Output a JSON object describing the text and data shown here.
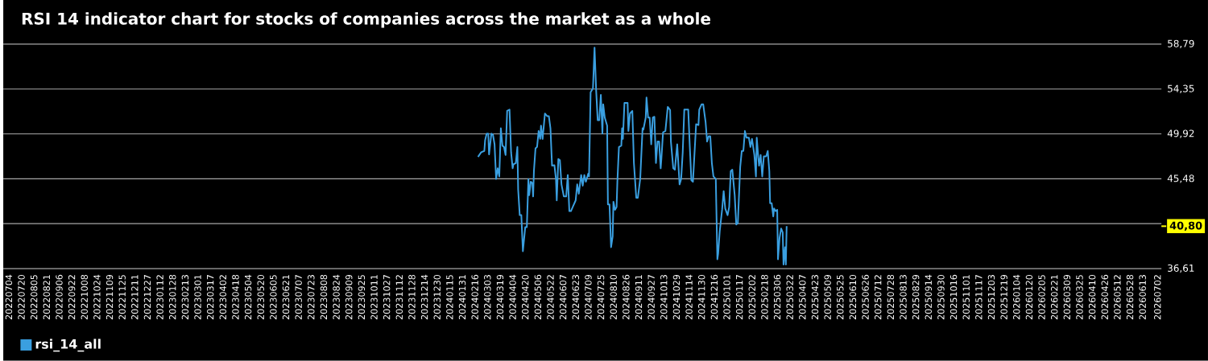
{
  "chart_data": {
    "type": "line",
    "title": "RSI 14 indicator chart for stocks of companies across the market as a whole",
    "x": [
      "2024-02-20",
      "2024-02-24",
      "2024-02-28",
      "2024-02-29",
      "2024-03-02",
      "2024-03-04",
      "2024-03-05",
      "2024-03-08",
      "2024-03-10",
      "2024-03-12",
      "2024-03-14",
      "2024-03-16",
      "2024-03-18",
      "2024-03-20",
      "2024-03-22",
      "2024-03-24",
      "2024-03-26",
      "2024-03-28",
      "2024-03-31",
      "2024-04-02",
      "2024-04-04",
      "2024-04-05",
      "2024-04-08",
      "2024-04-10",
      "2024-04-11",
      "2024-04-13",
      "2024-04-15",
      "2024-04-17",
      "2024-04-20",
      "2024-04-22",
      "2024-04-24",
      "2024-04-25",
      "2024-04-27",
      "2024-04-29",
      "2024-04-30",
      "2024-05-01",
      "2024-05-03",
      "2024-05-05",
      "2024-05-07",
      "2024-05-09",
      "2024-05-10",
      "2024-05-12",
      "2024-05-15",
      "2024-05-18",
      "2024-05-20",
      "2024-05-22",
      "2024-05-24",
      "2024-05-27",
      "2024-05-29",
      "2024-05-30",
      "2024-06-01",
      "2024-06-03",
      "2024-06-05",
      "2024-06-08",
      "2024-06-11",
      "2024-06-13",
      "2024-06-15",
      "2024-06-17",
      "2024-06-20",
      "2024-06-23",
      "2024-06-25",
      "2024-06-27",
      "2024-06-30",
      "2024-07-02",
      "2024-07-04",
      "2024-07-06",
      "2024-07-09",
      "2024-07-10",
      "2024-07-12",
      "2024-07-15",
      "2024-07-17",
      "2024-07-19",
      "2024-07-21",
      "2024-07-23",
      "2024-07-25",
      "2024-07-27",
      "2024-07-28",
      "2024-07-30",
      "2024-08-02",
      "2024-08-03",
      "2024-08-05",
      "2024-08-07",
      "2024-08-09",
      "2024-08-10",
      "2024-08-12",
      "2024-08-14",
      "2024-08-15",
      "2024-08-17",
      "2024-08-20",
      "2024-08-21",
      "2024-08-22",
      "2024-08-24",
      "2024-08-28",
      "2024-08-29",
      "2024-08-31",
      "2024-09-03",
      "2024-09-05",
      "2024-09-08",
      "2024-09-10",
      "2024-09-13",
      "2024-09-16",
      "2024-09-17",
      "2024-09-20",
      "2024-09-21",
      "2024-09-23",
      "2024-09-25",
      "2024-09-27",
      "2024-09-29",
      "2024-10-01",
      "2024-10-03",
      "2024-10-05",
      "2024-10-07",
      "2024-10-09",
      "2024-10-10",
      "2024-10-12",
      "2024-10-15",
      "2024-10-18",
      "2024-10-21",
      "2024-10-22",
      "2024-10-25",
      "2024-10-27",
      "2024-10-30",
      "2024-11-02",
      "2024-11-04",
      "2024-11-06",
      "2024-11-08",
      "2024-11-10",
      "2024-11-13",
      "2024-11-15",
      "2024-11-17",
      "2024-11-19",
      "2024-11-23",
      "2024-11-26",
      "2024-11-27",
      "2024-11-30",
      "2024-12-02",
      "2024-12-05",
      "2024-12-07",
      "2024-12-09",
      "2024-12-11",
      "2024-12-13",
      "2024-12-15",
      "2024-12-18",
      "2024-12-20",
      "2024-12-21",
      "2024-12-23",
      "2024-12-26",
      "2024-12-28",
      "2024-12-30",
      "2025-01-02",
      "2025-01-04",
      "2025-01-06",
      "2025-01-08",
      "2025-01-11",
      "2025-01-13",
      "2025-01-15",
      "2025-01-18",
      "2025-01-20",
      "2025-01-22",
      "2025-01-24",
      "2025-01-26",
      "2025-01-29",
      "2025-01-31",
      "2025-02-02",
      "2025-02-05",
      "2025-02-07",
      "2025-02-08",
      "2025-02-10",
      "2025-02-11",
      "2025-02-13",
      "2025-02-15",
      "2025-02-17",
      "2025-02-20",
      "2025-02-22",
      "2025-02-24",
      "2025-02-25",
      "2025-02-27",
      "2025-03-01",
      "2025-03-02",
      "2025-03-04",
      "2025-03-06",
      "2025-03-07",
      "2025-03-09",
      "2025-03-11",
      "2025-03-13",
      "2025-03-14",
      "2025-03-16",
      "2025-03-17",
      "2025-03-18"
    ],
    "series": [
      {
        "name": "rsi_14_all",
        "color": "#3a9fe0",
        "values": [
          47.65,
          48.1,
          48.23,
          49.29,
          49.95,
          49.95,
          47.89,
          49.95,
          49.82,
          48.89,
          45.46,
          46.52,
          45.72,
          50.47,
          48.76,
          48.63,
          47.84,
          52.19,
          52.32,
          48.1,
          46.52,
          46.91,
          47.04,
          48.63,
          44.4,
          41.89,
          41.89,
          38.33,
          40.71,
          40.71,
          45.46,
          43.87,
          45.19,
          45.06,
          43.74,
          46.25,
          48.49,
          48.63,
          50.21,
          49.42,
          50.74,
          49.42,
          51.93,
          51.66,
          51.66,
          50.47,
          46.78,
          46.83,
          45.46,
          43.35,
          47.44,
          47.31,
          44.93,
          43.74,
          43.74,
          45.86,
          42.29,
          42.29,
          42.82,
          43.35,
          44.93,
          44.01,
          45.86,
          44.8,
          45.86,
          45.19,
          45.99,
          45.72,
          54.04,
          54.43,
          58.45,
          54.3,
          51.27,
          51.27,
          53.77,
          49.95,
          52.85,
          51.53,
          50.74,
          42.95,
          42.95,
          38.73,
          39.78,
          43.22,
          42.42,
          42.69,
          45.19,
          48.63,
          48.76,
          50.47,
          49.42,
          52.98,
          52.98,
          50.21,
          51.93,
          52.19,
          47.04,
          43.61,
          43.61,
          45.46,
          50.47,
          50.34,
          51.53,
          53.51,
          51.53,
          51.53,
          48.89,
          51.53,
          51.61,
          47.04,
          49.16,
          49.16,
          46.52,
          47.57,
          50.08,
          50.21,
          52.59,
          52.27,
          49.16,
          46.52,
          46.38,
          48.89,
          44.93,
          45.46,
          48.1,
          52.32,
          52.32,
          52.32,
          48.63,
          45.33,
          45.19,
          50.87,
          50.79,
          52.32,
          52.85,
          52.85,
          51.13,
          49.16,
          49.68,
          49.68,
          47.04,
          45.72,
          45.46,
          37.54,
          38.07,
          40.31,
          42.42,
          44.27,
          42.55,
          41.89,
          42.69,
          46.25,
          46.38,
          43.87,
          40.97,
          41.1,
          46.65,
          48.23,
          48.23,
          50.21,
          49.55,
          49.55,
          48.63,
          49.42,
          47.84,
          45.72,
          49.55,
          47.57,
          46.78,
          47.84,
          45.72,
          47.7,
          47.7,
          48.23,
          46.25,
          43.08,
          43.08,
          41.76,
          42.55,
          42.29,
          42.42,
          37.54,
          39.65,
          40.57,
          40.18,
          37.01,
          38.73,
          37.01,
          40.8
        ]
      }
    ],
    "xlim": [
      "2022-06-27",
      "2026-07-07"
    ],
    "xticks": [
      {
        "value": "2022-07-04",
        "label": "20220704"
      },
      {
        "value": "2022-07-20",
        "label": "20220720"
      },
      {
        "value": "2022-08-05",
        "label": "20220805"
      },
      {
        "value": "2022-08-21",
        "label": "20220821"
      },
      {
        "value": "2022-09-06",
        "label": "20220906"
      },
      {
        "value": "2022-09-22",
        "label": "20220922"
      },
      {
        "value": "2022-10-08",
        "label": "20221008"
      },
      {
        "value": "2022-10-24",
        "label": "20221024"
      },
      {
        "value": "2022-11-09",
        "label": "20221109"
      },
      {
        "value": "2022-11-25",
        "label": "20221125"
      },
      {
        "value": "2022-12-11",
        "label": "20221211"
      },
      {
        "value": "2022-12-27",
        "label": "20221227"
      },
      {
        "value": "2023-01-12",
        "label": "20230112"
      },
      {
        "value": "2023-01-28",
        "label": "20230128"
      },
      {
        "value": "2023-02-13",
        "label": "20230213"
      },
      {
        "value": "2023-03-01",
        "label": "20230301"
      },
      {
        "value": "2023-03-17",
        "label": "20230317"
      },
      {
        "value": "2023-04-02",
        "label": "20230402"
      },
      {
        "value": "2023-04-18",
        "label": "20230418"
      },
      {
        "value": "2023-05-04",
        "label": "20230504"
      },
      {
        "value": "2023-05-20",
        "label": "20230520"
      },
      {
        "value": "2023-06-05",
        "label": "20230605"
      },
      {
        "value": "2023-06-21",
        "label": "20230621"
      },
      {
        "value": "2023-07-07",
        "label": "20230707"
      },
      {
        "value": "2023-07-23",
        "label": "20230723"
      },
      {
        "value": "2023-08-08",
        "label": "20230808"
      },
      {
        "value": "2023-08-24",
        "label": "20230824"
      },
      {
        "value": "2023-09-09",
        "label": "20230909"
      },
      {
        "value": "2023-09-25",
        "label": "20230925"
      },
      {
        "value": "2023-10-11",
        "label": "20231011"
      },
      {
        "value": "2023-10-27",
        "label": "20231027"
      },
      {
        "value": "2023-11-12",
        "label": "20231112"
      },
      {
        "value": "2023-11-28",
        "label": "20231128"
      },
      {
        "value": "2023-12-14",
        "label": "20231214"
      },
      {
        "value": "2023-12-30",
        "label": "20231230"
      },
      {
        "value": "2024-01-15",
        "label": "20240115"
      },
      {
        "value": "2024-01-31",
        "label": "20240131"
      },
      {
        "value": "2024-02-16",
        "label": "20240216"
      },
      {
        "value": "2024-03-03",
        "label": "20240303"
      },
      {
        "value": "2024-03-19",
        "label": "20240319"
      },
      {
        "value": "2024-04-04",
        "label": "20240404"
      },
      {
        "value": "2024-04-20",
        "label": "20240420"
      },
      {
        "value": "2024-05-06",
        "label": "20240506"
      },
      {
        "value": "2024-05-22",
        "label": "20240522"
      },
      {
        "value": "2024-06-07",
        "label": "20240607"
      },
      {
        "value": "2024-06-23",
        "label": "20240623"
      },
      {
        "value": "2024-07-09",
        "label": "20240709"
      },
      {
        "value": "2024-07-25",
        "label": "20240725"
      },
      {
        "value": "2024-08-10",
        "label": "20240810"
      },
      {
        "value": "2024-08-26",
        "label": "20240826"
      },
      {
        "value": "2024-09-11",
        "label": "20240911"
      },
      {
        "value": "2024-09-27",
        "label": "20240927"
      },
      {
        "value": "2024-10-13",
        "label": "20241013"
      },
      {
        "value": "2024-10-29",
        "label": "20241029"
      },
      {
        "value": "2024-11-14",
        "label": "20241114"
      },
      {
        "value": "2024-11-30",
        "label": "20241130"
      },
      {
        "value": "2024-12-16",
        "label": "20241216"
      },
      {
        "value": "2025-01-01",
        "label": "20250101"
      },
      {
        "value": "2025-01-17",
        "label": "20250117"
      },
      {
        "value": "2025-02-02",
        "label": "20250202"
      },
      {
        "value": "2025-02-18",
        "label": "20250218"
      },
      {
        "value": "2025-03-06",
        "label": "20250306"
      },
      {
        "value": "2025-03-22",
        "label": "20250322"
      },
      {
        "value": "2025-04-07",
        "label": "20250407"
      },
      {
        "value": "2025-04-23",
        "label": "20250423"
      },
      {
        "value": "2025-05-09",
        "label": "20250509"
      },
      {
        "value": "2025-05-25",
        "label": "20250525"
      },
      {
        "value": "2025-06-10",
        "label": "20250610"
      },
      {
        "value": "2025-06-26",
        "label": "20250626"
      },
      {
        "value": "2025-07-12",
        "label": "20250712"
      },
      {
        "value": "2025-07-28",
        "label": "20250728"
      },
      {
        "value": "2025-08-13",
        "label": "20250813"
      },
      {
        "value": "2025-08-29",
        "label": "20250829"
      },
      {
        "value": "2025-09-14",
        "label": "20250914"
      },
      {
        "value": "2025-09-30",
        "label": "20250930"
      },
      {
        "value": "2025-10-16",
        "label": "20251016"
      },
      {
        "value": "2025-11-01",
        "label": "20251101"
      },
      {
        "value": "2025-11-17",
        "label": "20251117"
      },
      {
        "value": "2025-12-03",
        "label": "20251203"
      },
      {
        "value": "2025-12-19",
        "label": "20251219"
      },
      {
        "value": "2026-01-04",
        "label": "20260104"
      },
      {
        "value": "2026-01-20",
        "label": "20260120"
      },
      {
        "value": "2026-02-05",
        "label": "20260205"
      },
      {
        "value": "2026-02-21",
        "label": "20260221"
      },
      {
        "value": "2026-03-09",
        "label": "20260309"
      },
      {
        "value": "2026-03-25",
        "label": "20260325"
      },
      {
        "value": "2026-04-10",
        "label": "20260410"
      },
      {
        "value": "2026-04-26",
        "label": "20260426"
      },
      {
        "value": "2026-05-12",
        "label": "20260512"
      },
      {
        "value": "2026-05-28",
        "label": "20260528"
      },
      {
        "value": "2026-06-13",
        "label": "20260613"
      },
      {
        "value": "2026-07-02",
        "label": "20260702"
      }
    ],
    "ylim": [
      36.61,
      58.79
    ],
    "yticks": [
      {
        "value": 36.61,
        "label": "36,61"
      },
      {
        "value": 41.05,
        "label": null
      },
      {
        "value": 45.48,
        "label": "45,48"
      },
      {
        "value": 49.92,
        "label": "49,92"
      },
      {
        "value": 54.35,
        "label": "54,35"
      },
      {
        "value": 58.79,
        "label": "58,79"
      }
    ],
    "ref_lines": [
      {
        "axis": "y",
        "value": 40.8,
        "label": "40,80",
        "color": "#ffff00"
      }
    ],
    "grid": "y",
    "legend": "bottom"
  }
}
